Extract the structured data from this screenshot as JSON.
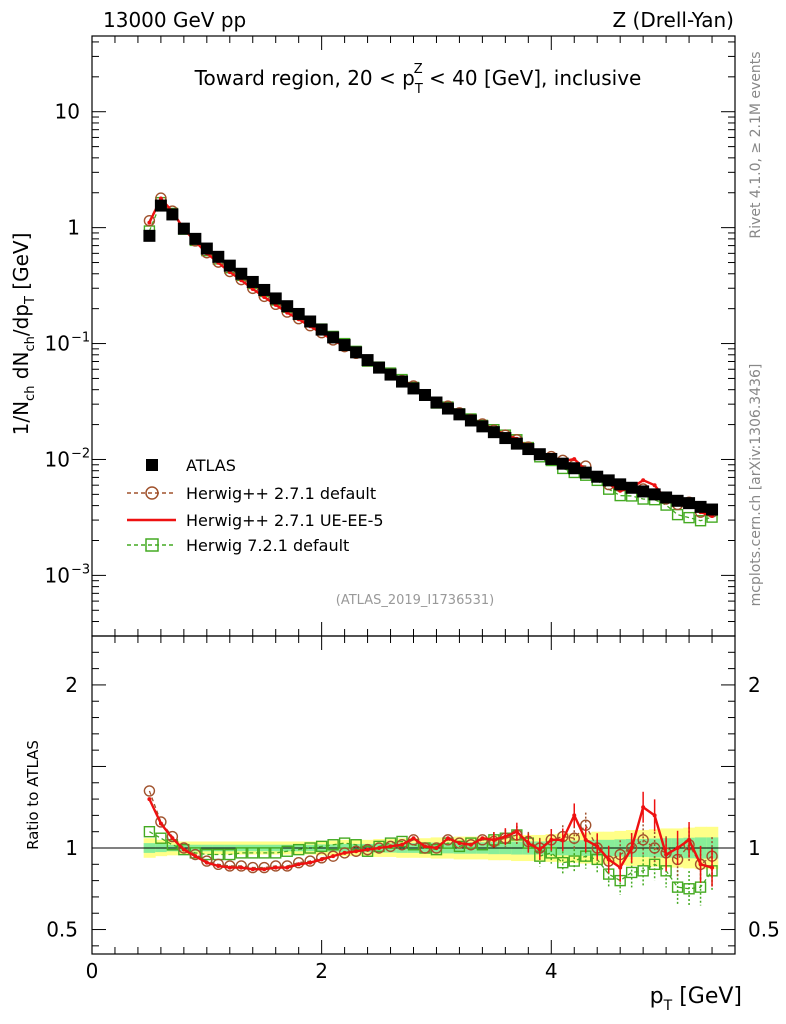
{
  "header": {
    "left": "13000 GeV pp",
    "right": "Z (Drell-Yan)"
  },
  "side_labels": {
    "rivet": "Rivet 4.1.0, ≥ 2.1M events",
    "mcplots": "mcplots.cern.ch [arXiv:1306.3436]"
  },
  "chart_data": {
    "type": "scatter",
    "title": "Toward region, 20 < p_T^Z < 40 [GeV], inclusive",
    "title_parts": {
      "pre": "Toward region, 20 < p",
      "sub": "T",
      "sup": "Z",
      "post": " < 40 [GeV], inclusive"
    },
    "watermark": "(ATLAS_2019_I1736531)",
    "ylabel": "1/N_ch dN_ch/dp_T [GeV]",
    "ylabel_parts": {
      "a": "1/N",
      "a_sub": "ch",
      "b": " dN",
      "b_sub": "ch",
      "c": "/dp",
      "c_sub": "T",
      "d": " [GeV]"
    },
    "xlabel": "p_T [GeV]",
    "xlabel_parts": {
      "main": "p",
      "sub": "T",
      "post": " [GeV]"
    },
    "ratio_ylabel": "Ratio to ATLAS",
    "xlim": [
      0,
      5.6
    ],
    "ylim_main": [
      0.0003,
      45
    ],
    "yscale_main": "log",
    "ylim_ratio": [
      0.35,
      2.3
    ],
    "x_ticks": [
      {
        "value": 0,
        "label": "0"
      },
      {
        "value": 2,
        "label": "2"
      },
      {
        "value": 4,
        "label": "4"
      }
    ],
    "y_ticks_main": [
      {
        "value": 10,
        "mant": "10",
        "exp": ""
      },
      {
        "value": 1,
        "mant": "1",
        "exp": ""
      },
      {
        "value": 0.1,
        "mant": "10",
        "exp": "−1"
      },
      {
        "value": 0.01,
        "mant": "10",
        "exp": "−2"
      },
      {
        "value": 0.001,
        "mant": "10",
        "exp": "−3"
      }
    ],
    "y_ticks_ratio": [
      {
        "value": 2,
        "label": "2"
      },
      {
        "value": 1,
        "label": "1"
      },
      {
        "value": 0.5,
        "label": "0.5"
      }
    ],
    "legend_position": "lower-left",
    "x": [
      0.5,
      0.6,
      0.7,
      0.8,
      0.9,
      1.0,
      1.1,
      1.2,
      1.3,
      1.4,
      1.5,
      1.6,
      1.7,
      1.8,
      1.9,
      2.0,
      2.1,
      2.2,
      2.3,
      2.4,
      2.5,
      2.6,
      2.7,
      2.8,
      2.9,
      3.0,
      3.1,
      3.2,
      3.3,
      3.4,
      3.5,
      3.6,
      3.7,
      3.8,
      3.9,
      4.0,
      4.1,
      4.2,
      4.3,
      4.4,
      4.5,
      4.6,
      4.7,
      4.8,
      4.9,
      5.0,
      5.1,
      5.2,
      5.3,
      5.4
    ],
    "series": [
      {
        "name": "ATLAS",
        "role": "data",
        "color": "#000000",
        "marker": "filled-square",
        "values": [
          0.85,
          1.55,
          1.3,
          0.98,
          0.8,
          0.66,
          0.56,
          0.47,
          0.4,
          0.34,
          0.29,
          0.245,
          0.21,
          0.18,
          0.155,
          0.132,
          0.113,
          0.097,
          0.084,
          0.072,
          0.062,
          0.054,
          0.047,
          0.041,
          0.036,
          0.031,
          0.0275,
          0.0245,
          0.0217,
          0.0193,
          0.0172,
          0.0153,
          0.0137,
          0.0123,
          0.0111,
          0.0101,
          0.0092,
          0.0084,
          0.0077,
          0.0071,
          0.0066,
          0.0061,
          0.0057,
          0.0053,
          0.005,
          0.0047,
          0.0044,
          0.0042,
          0.0039,
          0.0037
        ]
      },
      {
        "name": "Herwig++ 2.7.1 default",
        "role": "mc",
        "color": "#a0522d",
        "marker": "open-circle",
        "dashed": true,
        "ratio": [
          1.35,
          1.16,
          1.07,
          1.0,
          0.96,
          0.92,
          0.9,
          0.89,
          0.89,
          0.88,
          0.88,
          0.89,
          0.89,
          0.91,
          0.92,
          0.94,
          0.95,
          0.97,
          0.98,
          0.99,
          1.0,
          1.01,
          1.02,
          1.05,
          1.0,
          1.0,
          1.05,
          1.03,
          1.02,
          1.05,
          1.04,
          1.06,
          1.08,
          1.04,
          1.0,
          1.05,
          1.07,
          1.06,
          1.14,
          1.0,
          0.92,
          0.96,
          1.0,
          1.05,
          1.0,
          0.97,
          0.93,
          1.02,
          0.9,
          0.95
        ]
      },
      {
        "name": "Herwig++ 2.7.1 UE-EE-5",
        "role": "mc",
        "color": "#ee1111",
        "marker": "line",
        "dashed": false,
        "ratio": [
          1.3,
          1.15,
          1.06,
          0.99,
          0.95,
          0.91,
          0.89,
          0.88,
          0.88,
          0.87,
          0.87,
          0.88,
          0.88,
          0.9,
          0.91,
          0.93,
          0.95,
          0.97,
          0.98,
          0.99,
          1.0,
          1.01,
          1.02,
          1.06,
          1.01,
          1.0,
          1.06,
          1.03,
          1.02,
          1.06,
          1.05,
          1.07,
          1.1,
          1.03,
          0.99,
          1.05,
          1.05,
          1.2,
          1.05,
          1.01,
          0.93,
          0.88,
          1.0,
          1.25,
          1.2,
          0.96,
          1.0,
          1.05,
          0.9,
          0.88
        ]
      },
      {
        "name": "Herwig 7.2.1 default",
        "role": "mc",
        "color": "#44aa22",
        "marker": "open-square",
        "dashed": true,
        "ratio": [
          1.1,
          1.06,
          1.02,
          0.99,
          0.97,
          0.96,
          0.96,
          0.96,
          0.97,
          0.97,
          0.97,
          0.97,
          0.98,
          0.99,
          1.0,
          1.01,
          1.02,
          1.03,
          1.02,
          0.98,
          1.01,
          1.03,
          1.04,
          1.02,
          1.0,
          0.99,
          1.03,
          1.01,
          1.03,
          1.02,
          1.05,
          1.06,
          1.08,
          1.03,
          0.95,
          0.97,
          0.91,
          0.92,
          0.95,
          0.93,
          0.84,
          0.8,
          0.85,
          0.86,
          0.9,
          0.86,
          0.76,
          0.75,
          0.76,
          0.86
        ]
      }
    ],
    "data_error_fraction": [
      0.06,
      0.05,
      0.045,
      0.04,
      0.04,
      0.04,
      0.04,
      0.04,
      0.04,
      0.04,
      0.04,
      0.04,
      0.04,
      0.04,
      0.04,
      0.045,
      0.045,
      0.05,
      0.05,
      0.05,
      0.055,
      0.055,
      0.06,
      0.06,
      0.06,
      0.065,
      0.065,
      0.07,
      0.07,
      0.07,
      0.075,
      0.075,
      0.08,
      0.08,
      0.08,
      0.085,
      0.09,
      0.09,
      0.095,
      0.1,
      0.1,
      0.105,
      0.11,
      0.11,
      0.115,
      0.12,
      0.12,
      0.125,
      0.13,
      0.13
    ],
    "data_stat_fraction": [
      0.03,
      0.025,
      0.02,
      0.02,
      0.02,
      0.02,
      0.02,
      0.02,
      0.02,
      0.02,
      0.02,
      0.02,
      0.02,
      0.02,
      0.02,
      0.022,
      0.022,
      0.025,
      0.025,
      0.025,
      0.028,
      0.028,
      0.03,
      0.03,
      0.03,
      0.033,
      0.033,
      0.035,
      0.035,
      0.035,
      0.038,
      0.038,
      0.04,
      0.04,
      0.04,
      0.043,
      0.045,
      0.045,
      0.048,
      0.05,
      0.05,
      0.053,
      0.055,
      0.055,
      0.058,
      0.06,
      0.06,
      0.063,
      0.065,
      0.065
    ],
    "colors": {
      "band_total": "#ffff88",
      "band_stat": "#88ee99"
    }
  }
}
